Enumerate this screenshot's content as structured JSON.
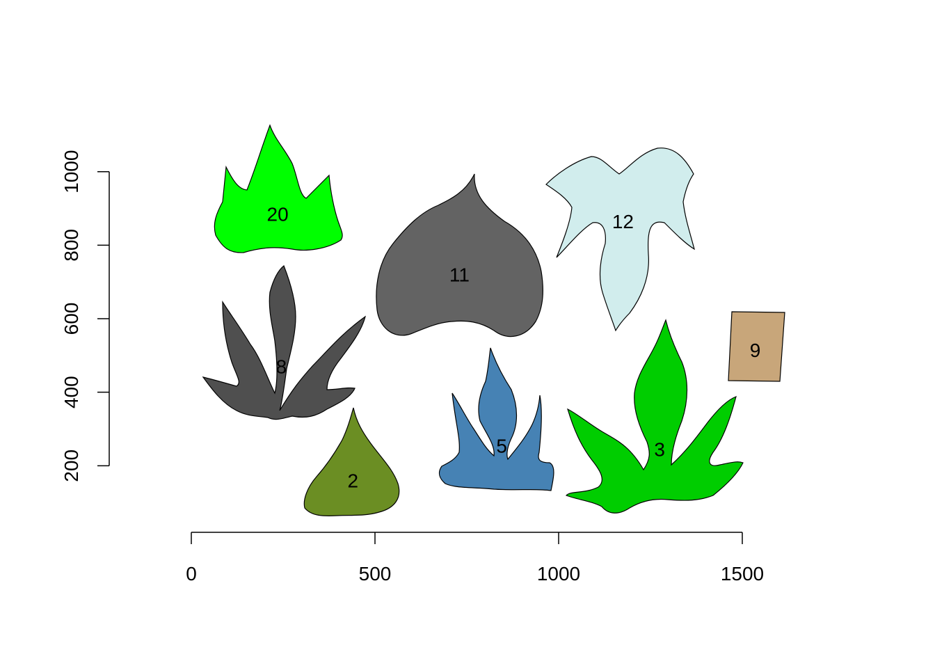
{
  "chart_data": {
    "type": "scatter",
    "title": "",
    "xlabel": "",
    "ylabel": "",
    "xlim": [
      -270,
      1560
    ],
    "ylim": [
      -40,
      1200
    ],
    "x_ticks": [
      {
        "value": 0,
        "label": "0"
      },
      {
        "value": 500,
        "label": "500"
      },
      {
        "value": 1000,
        "label": "1000"
      },
      {
        "value": 1500,
        "label": "1500"
      }
    ],
    "y_ticks": [
      {
        "value": 200,
        "label": "200"
      },
      {
        "value": 400,
        "label": "400"
      },
      {
        "value": 600,
        "label": "600"
      },
      {
        "value": 800,
        "label": "800"
      },
      {
        "value": 1000,
        "label": "1000"
      }
    ],
    "grid": false,
    "legend": "none",
    "shapes": [
      {
        "id": "20",
        "label": "20",
        "fill": "#00ff00",
        "label_x": 235,
        "label_y": 885,
        "kind": "maple"
      },
      {
        "id": "11",
        "label": "11",
        "fill": "#636363",
        "label_x": 730,
        "label_y": 720,
        "kind": "heart"
      },
      {
        "id": "12",
        "label": "12",
        "fill": "#d1eded",
        "label_x": 1175,
        "label_y": 865,
        "kind": "trilobe"
      },
      {
        "id": "8",
        "label": "8",
        "fill": "#4f4f4f",
        "label_x": 245,
        "label_y": 470,
        "kind": "palmate-thin"
      },
      {
        "id": "9",
        "label": "9",
        "fill": "#c8a67a",
        "label_x": 1535,
        "label_y": 515,
        "kind": "rectangle"
      },
      {
        "id": "2",
        "label": "2",
        "fill": "#6b8e23",
        "label_x": 440,
        "label_y": 160,
        "kind": "triangle"
      },
      {
        "id": "5",
        "label": "5",
        "fill": "#4682b4",
        "label_x": 845,
        "label_y": 255,
        "kind": "flame"
      },
      {
        "id": "3",
        "label": "3",
        "fill": "#00cd00",
        "label_x": 1275,
        "label_y": 245,
        "kind": "palmate-wide"
      }
    ]
  }
}
